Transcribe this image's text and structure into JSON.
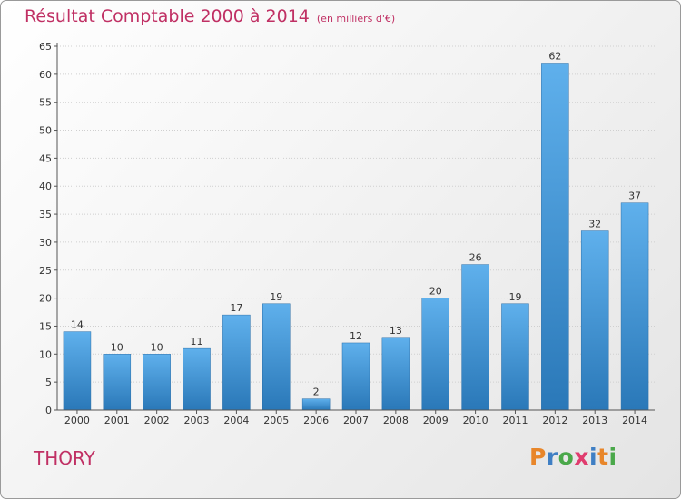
{
  "header": {
    "title": "Résultat Comptable 2000 à 2014",
    "subtitle": "(en milliers d'€)"
  },
  "footer": {
    "place": "THORY",
    "logo": "Proxiti"
  },
  "colors": {
    "title": "#c03064",
    "bar_top": "#5fb0ec",
    "bar_bottom": "#2a78b8",
    "logo_letters": [
      "#e8862a",
      "#3f7fc4",
      "#4aa84a",
      "#e03c6e",
      "#3f7fc4",
      "#e8862a",
      "#4aa84a"
    ]
  },
  "chart_data": {
    "type": "bar",
    "title": "Résultat Comptable 2000 à 2014",
    "subtitle": "(en milliers d'€)",
    "xlabel": "",
    "ylabel": "",
    "categories": [
      "2000",
      "2001",
      "2002",
      "2003",
      "2004",
      "2005",
      "2006",
      "2007",
      "2008",
      "2009",
      "2010",
      "2011",
      "2012",
      "2013",
      "2014"
    ],
    "values": [
      14,
      10,
      10,
      11,
      17,
      19,
      2,
      12,
      13,
      20,
      26,
      19,
      62,
      32,
      37
    ],
    "ylim": [
      0,
      65
    ],
    "yticks": [
      0,
      5,
      10,
      15,
      20,
      25,
      30,
      35,
      40,
      45,
      50,
      55,
      60,
      65
    ],
    "grid": true,
    "data_labels": true
  }
}
